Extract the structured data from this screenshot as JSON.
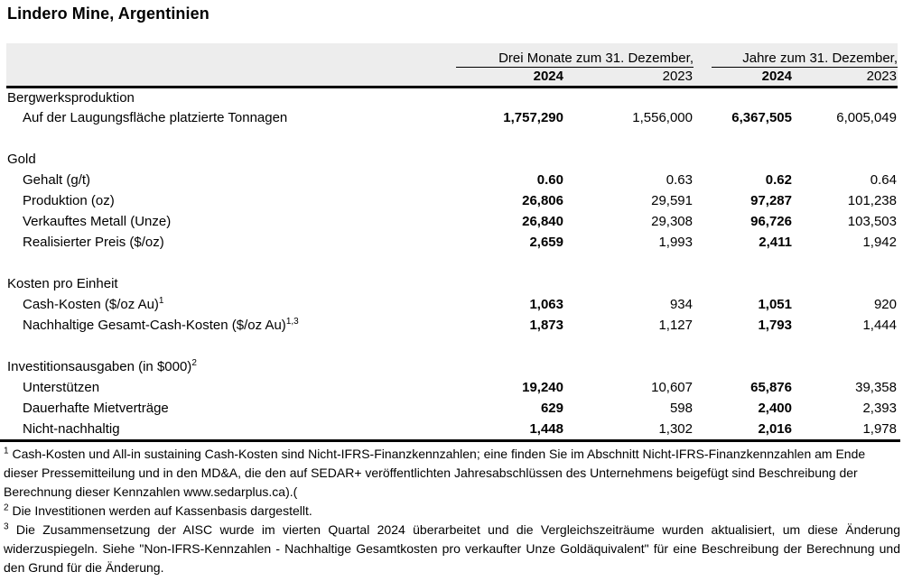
{
  "page": {
    "title": "Lindero Mine, Argentinien"
  },
  "colors": {
    "header_band": "#ededed",
    "rule": "#000000",
    "text": "#000000",
    "background": "#ffffff"
  },
  "table": {
    "col_groups": [
      {
        "label": "Drei Monate zum 31. Dezember,"
      },
      {
        "label": "Jahre zum 31. Dezember,"
      }
    ],
    "year_headers": [
      "2024",
      "2023",
      "2024",
      "2023"
    ],
    "sections": [
      {
        "heading": "Bergwerksproduktion",
        "heading_sup": "",
        "rows": [
          {
            "label": "Auf der Laugungsfläche platzierte Tonnagen",
            "sup": "",
            "values": [
              "1,757,290",
              "1,556,000",
              "6,367,505",
              "6,005,049"
            ]
          }
        ]
      },
      {
        "heading": "Gold",
        "heading_sup": "",
        "rows": [
          {
            "label": "Gehalt (g/t)",
            "sup": "",
            "values": [
              "0.60",
              "0.63",
              "0.62",
              "0.64"
            ]
          },
          {
            "label": "Produktion (oz)",
            "sup": "",
            "values": [
              "26,806",
              "29,591",
              "97,287",
              "101,238"
            ]
          },
          {
            "label": "Verkauftes Metall (Unze)",
            "sup": "",
            "values": [
              "26,840",
              "29,308",
              "96,726",
              "103,503"
            ]
          },
          {
            "label": "Realisierter Preis ($/oz)",
            "sup": "",
            "values": [
              "2,659",
              "1,993",
              "2,411",
              "1,942"
            ]
          }
        ]
      },
      {
        "heading": "Kosten pro Einheit",
        "heading_sup": "",
        "rows": [
          {
            "label": "Cash-Kosten ($/oz Au)",
            "sup": "1",
            "values": [
              "1,063",
              "934",
              "1,051",
              "920"
            ]
          },
          {
            "label": "Nachhaltige Gesamt-Cash-Kosten ($/oz Au)",
            "sup": "1,3",
            "values": [
              "1,873",
              "1,127",
              "1,793",
              "1,444"
            ]
          }
        ]
      },
      {
        "heading": "Investitionsausgaben (in $000)",
        "heading_sup": "2",
        "rows": [
          {
            "label": "Unterstützen",
            "sup": "",
            "values": [
              "19,240",
              "10,607",
              "65,876",
              "39,358"
            ]
          },
          {
            "label": "Dauerhafte Mietverträge",
            "sup": "",
            "values": [
              "629",
              "598",
              "2,400",
              "2,393"
            ]
          },
          {
            "label": "Nicht-nachhaltig",
            "sup": "",
            "values": [
              "1,448",
              "1,302",
              "2,016",
              "1,978"
            ]
          }
        ]
      }
    ]
  },
  "footnotes": [
    {
      "marker": "1",
      "text": "Cash-Kosten und All-in sustaining Cash-Kosten sind Nicht-IFRS-Finanzkennzahlen; eine finden Sie im Abschnitt Nicht-IFRS-Finanzkennzahlen am Ende dieser Pressemitteilung und in den MD&A, die den auf SEDAR+ veröffentlichten Jahresabschlüssen des Unternehmens beigefügt sind Beschreibung der Berechnung dieser Kennzahlen www.sedarplus.ca).("
    },
    {
      "marker": "2",
      "text": "Die Investitionen werden auf Kassenbasis dargestellt."
    },
    {
      "marker": "3",
      "text": "Die Zusammensetzung der AISC wurde im vierten Quartal 2024 überarbeitet und die Vergleichszeiträume wurden aktualisiert, um diese Änderung widerzuspiegeln. Siehe \"Non-IFRS-Kennzahlen - Nachhaltige Gesamtkosten pro verkaufter Unze Goldäquivalent\" für eine Beschreibung der Berechnung und den Grund für die Änderung."
    }
  ]
}
